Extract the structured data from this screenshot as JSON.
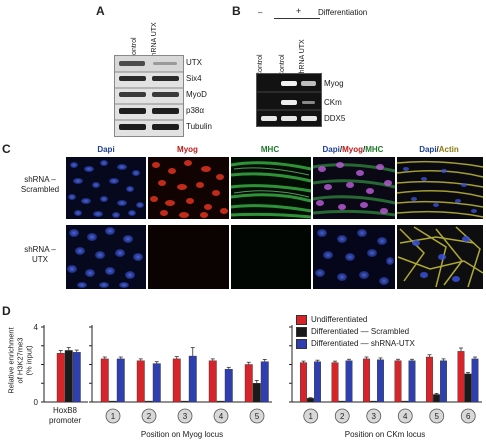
{
  "panelA": {
    "letter": "A",
    "lanes": [
      "Control",
      "shRNA UTX"
    ],
    "bands": [
      "UTX",
      "Six4",
      "MyoD",
      "p38α",
      "Tubulin"
    ]
  },
  "panelB": {
    "letter": "B",
    "header_minus": "–",
    "header_plus": "+",
    "header_label": "Differentiation",
    "lanes": [
      "Control",
      "Control",
      "shRNA UTX"
    ],
    "bands": [
      "Myog",
      "CKm",
      "DDX5"
    ]
  },
  "panelC": {
    "letter": "C",
    "columns": [
      {
        "label": "Dapi",
        "color": "#1d3f9a"
      },
      {
        "label": "Myog",
        "color": "#c01818"
      },
      {
        "label": "MHC",
        "color": "#1f7a2a"
      },
      {
        "label_parts": [
          "Dapi",
          "/",
          "Myog",
          "/",
          "MHC"
        ],
        "colors": [
          "#1d3f9a",
          "#222222",
          "#c01818",
          "#222222",
          "#1f7a2a"
        ]
      },
      {
        "label_parts": [
          "Dapi",
          "/",
          "Actin"
        ],
        "colors": [
          "#1d3f9a",
          "#222222",
          "#8a7a10"
        ]
      }
    ],
    "rows": [
      {
        "label_line1": "shRNA –",
        "label_line2": "Scrambled"
      },
      {
        "label_line1": "shRNA –",
        "label_line2": "UTX"
      }
    ]
  },
  "panelD": {
    "letter": "D",
    "ylabel_lines": [
      "Relative enrichment",
      "of H3K27me3",
      "(% input)"
    ],
    "colors": {
      "undiff": "#d6252a",
      "scrambled": "#1a1a1a",
      "shUTX": "#2f3fae"
    },
    "legend": [
      "Undifferentiated",
      "Differentiated — Scrambled",
      "Differentiated — shRNA-UTX"
    ],
    "hoxb8_label_lines": [
      "HoxB8",
      "promoter"
    ],
    "myog_xlabel": "Position on Myog locus",
    "ckm_xlabel": "Position on CKm locus"
  },
  "chart_data": [
    {
      "type": "bar",
      "title": "",
      "categories": [
        "HoxB8 promoter"
      ],
      "yticks": [
        0,
        4
      ],
      "ylim": [
        0,
        4
      ],
      "series": [
        {
          "values": [
            2.6
          ],
          "errors": [
            0.15
          ]
        },
        {
          "values": [
            2.75
          ],
          "errors": [
            0.15
          ]
        },
        {
          "values": [
            2.65
          ],
          "errors": [
            0.12
          ]
        }
      ]
    },
    {
      "type": "bar",
      "xlabel": "Position on Myog locus",
      "categories": [
        "1",
        "2",
        "3",
        "4",
        "5"
      ],
      "ylim": [
        0,
        4
      ],
      "series": [
        {
          "values": [
            2.3,
            2.2,
            2.3,
            2.2,
            2.0
          ],
          "errors": [
            0.1,
            0.1,
            0.12,
            0.1,
            0.12
          ]
        },
        {
          "values": [
            0.05,
            0.05,
            0.05,
            0.05,
            1.0
          ],
          "errors": [
            0,
            0,
            0,
            0,
            0.15
          ]
        },
        {
          "values": [
            2.3,
            2.05,
            2.45,
            1.75,
            2.15
          ],
          "errors": [
            0.1,
            0.1,
            0.45,
            0.1,
            0.12
          ]
        }
      ]
    },
    {
      "type": "bar",
      "xlabel": "Position on CKm locus",
      "categories": [
        "1",
        "2",
        "3",
        "4",
        "5",
        "6"
      ],
      "ylim": [
        0,
        4
      ],
      "series": [
        {
          "values": [
            2.1,
            2.1,
            2.3,
            2.2,
            2.4,
            2.7
          ],
          "errors": [
            0.08,
            0.08,
            0.1,
            0.08,
            0.12,
            0.18
          ]
        },
        {
          "values": [
            0.2,
            0.05,
            0.05,
            0.05,
            0.4,
            1.5
          ],
          "errors": [
            0.03,
            0,
            0,
            0,
            0.06,
            0.08
          ]
        },
        {
          "values": [
            2.15,
            2.2,
            2.25,
            2.2,
            2.2,
            2.3
          ],
          "errors": [
            0.08,
            0.08,
            0.1,
            0.08,
            0.1,
            0.1
          ]
        }
      ]
    }
  ]
}
